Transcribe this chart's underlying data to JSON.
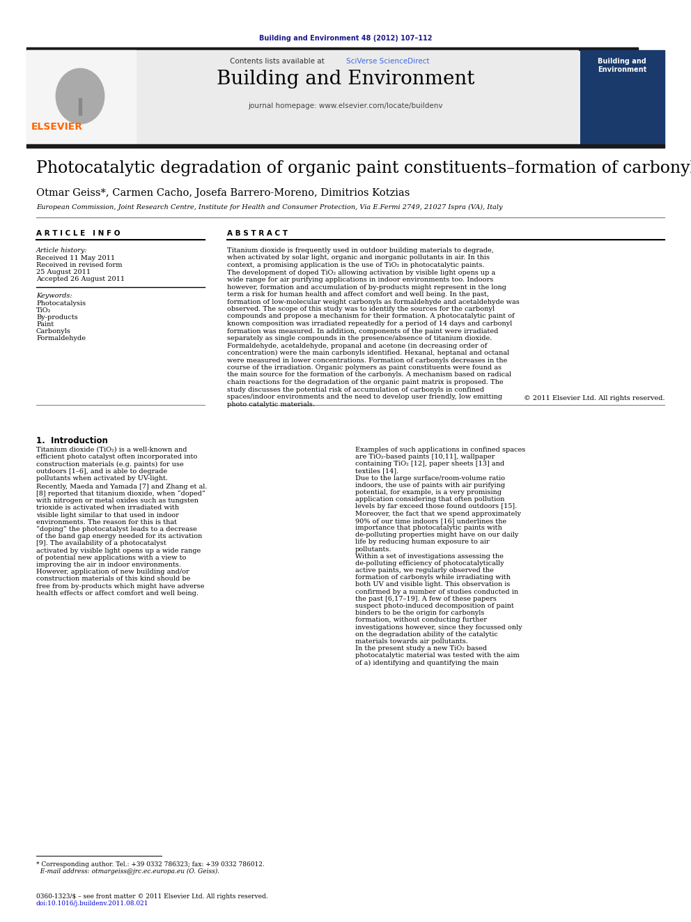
{
  "bg_color": "#ffffff",
  "header_journal_ref": "Building and Environment 48 (2012) 107–112",
  "header_journal_ref_color": "#1a1a8c",
  "journal_name": "Building and Environment",
  "sciverse_color": "#4169E1",
  "journal_homepage": "journal homepage: www.elsevier.com/locate/buildenv",
  "header_bg": "#EBEBEB",
  "paper_title": "Photocatalytic degradation of organic paint constituents–formation of carbonyls",
  "authors": "Otmar Geiss*, Carmen Cacho, Josefa Barrero-Moreno, Dimitrios Kotzias",
  "affiliation": "European Commission, Joint Research Centre, Institute for Health and Consumer Protection, Via E.Fermi 2749, 21027 Ispra (VA), Italy",
  "article_info_header": "A R T I C L E   I N F O",
  "abstract_header": "A B S T R A C T",
  "article_history_label": "Article history:",
  "received": "Received 11 May 2011",
  "received_revised": "Received in revised form",
  "revised_date": "25 August 2011",
  "accepted": "Accepted 26 August 2011",
  "keywords_label": "Keywords:",
  "keywords": [
    "Photocatalysis",
    "TiO₂",
    "By-products",
    "Paint",
    "Carbonyls",
    "Formaldehyde"
  ],
  "abstract_text": "Titanium dioxide is frequently used in outdoor building materials to degrade, when activated by solar light, organic and inorganic pollutants in air. In this context, a promising application is the use of TiO₂ in photocatalytic paints. The development of doped TiO₂ allowing activation by visible light opens up a wide range for air purifying applications in indoor environments too. Indoors however, formation and accumulation of by-products might represent in the long term a risk for human health and affect comfort and well being. In the past, formation of low-molecular weight carbonyls as formaldehyde and acetaldehyde was observed. The scope of this study was to identify the sources for the carbonyl compounds and propose a mechanism for their formation. A photocatalytic paint of known composition was irradiated repeatedly for a period of 14 days and carbonyl formation was measured. In addition, components of the paint were irradiated separately as single compounds in the presence/absence of titanium dioxide. Formaldehyde, acetaldehyde, propanal and acetone (in decreasing order of concentration) were the main carbonyls identified. Hexanal, heptanal and octanal were measured in lower concentrations. Formation of carbonyls decreases in the course of the irradiation. Organic polymers as paint constituents were found as the main source for the formation of the carbonyls. A mechanism based on radical chain reactions for the degradation of the organic paint matrix is proposed. The study discusses the potential risk of accumulation of carbonyls in confined spaces/indoor environments and the need to develop user friendly, low emitting photo catalytic materials.",
  "copyright": "© 2011 Elsevier Ltd. All rights reserved.",
  "section1_header": "1.  Introduction",
  "intro_col1_p1": "    Titanium dioxide (TiO₂) is a well-known and efficient photo catalyst often incorporated into construction materials (e.g. paints) for use outdoors [1–6], and is able to degrade pollutants when activated by UV-light.",
  "intro_col1_p2": "    Recently, Maeda and Yamada [7] and Zhang et al. [8] reported that titanium dioxide, when “doped” with nitrogen or metal oxides such as tungsten trioxide is activated when irradiated with visible light similar to that used in indoor environments. The reason for this is that “doping” the photocatalyst leads to a decrease of the band gap energy needed for its activation [9]. The availability of a photocatalyst activated by visible light opens up a wide range of potential new applications with a view to improving the air in indoor environments. However, application of new building and/or construction materials of this kind should be free from by-products which might have adverse health effects or affect comfort and well being.",
  "intro_col2_p1": "    Examples of such applications in confined spaces are TiO₂-based paints [10,11], wallpaper containing TiO₂ [12], paper sheets [13] and textiles [14].",
  "intro_col2_p2": "    Due to the large surface/room-volume ratio indoors, the use of paints with air purifying potential, for example, is a very promising application considering that often pollution levels by far exceed those found outdoors [15]. Moreover, the fact that we spend approximately 90% of our time indoors [16] underlines the importance that photocatalytic paints with de-polluting properties might have on our daily life by reducing human exposure to air pollutants.",
  "intro_col2_p3": "    Within a set of investigations assessing the de-polluting efficiency of photocatalytically active paints, we regularly observed the formation of carbonyls while irradiating with both UV and visible light. This observation is confirmed by a number of studies conducted in the past [6,17–19]. A few of these papers suspect photo-induced decomposition of paint binders to be the origin for carbonyls formation, without conducting further investigations however, since they focussed only on the degradation ability of the catalytic materials towards air pollutants.",
  "intro_col2_p4": "    In the present study a new TiO₂ based photocatalytic material was tested with the aim of a) identifying and quantifying the main",
  "elsevier_orange": "#FF6600",
  "dark_blue": "#00008B",
  "black": "#000000",
  "link_blue": "#0000CD"
}
